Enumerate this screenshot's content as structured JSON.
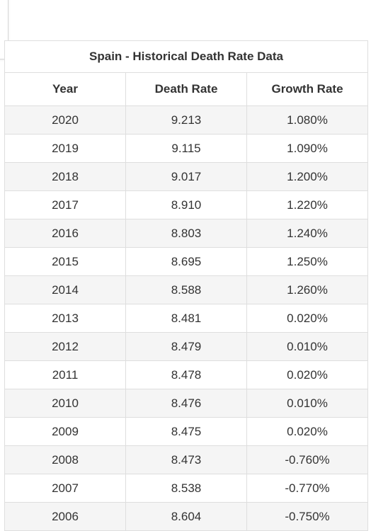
{
  "table": {
    "title": "Spain - Historical Death Rate Data",
    "headers": [
      "Year",
      "Death Rate",
      "Growth Rate"
    ],
    "rows": [
      [
        "2020",
        "9.213",
        "1.080%"
      ],
      [
        "2019",
        "9.115",
        "1.090%"
      ],
      [
        "2018",
        "9.017",
        "1.200%"
      ],
      [
        "2017",
        "8.910",
        "1.220%"
      ],
      [
        "2016",
        "8.803",
        "1.240%"
      ],
      [
        "2015",
        "8.695",
        "1.250%"
      ],
      [
        "2014",
        "8.588",
        "1.260%"
      ],
      [
        "2013",
        "8.481",
        "0.020%"
      ],
      [
        "2012",
        "8.479",
        "0.010%"
      ],
      [
        "2011",
        "8.478",
        "0.020%"
      ],
      [
        "2010",
        "8.476",
        "0.010%"
      ],
      [
        "2009",
        "8.475",
        "0.020%"
      ],
      [
        "2008",
        "8.473",
        "-0.760%"
      ],
      [
        "2007",
        "8.538",
        "-0.770%"
      ],
      [
        "2006",
        "8.604",
        "-0.750%"
      ]
    ]
  }
}
